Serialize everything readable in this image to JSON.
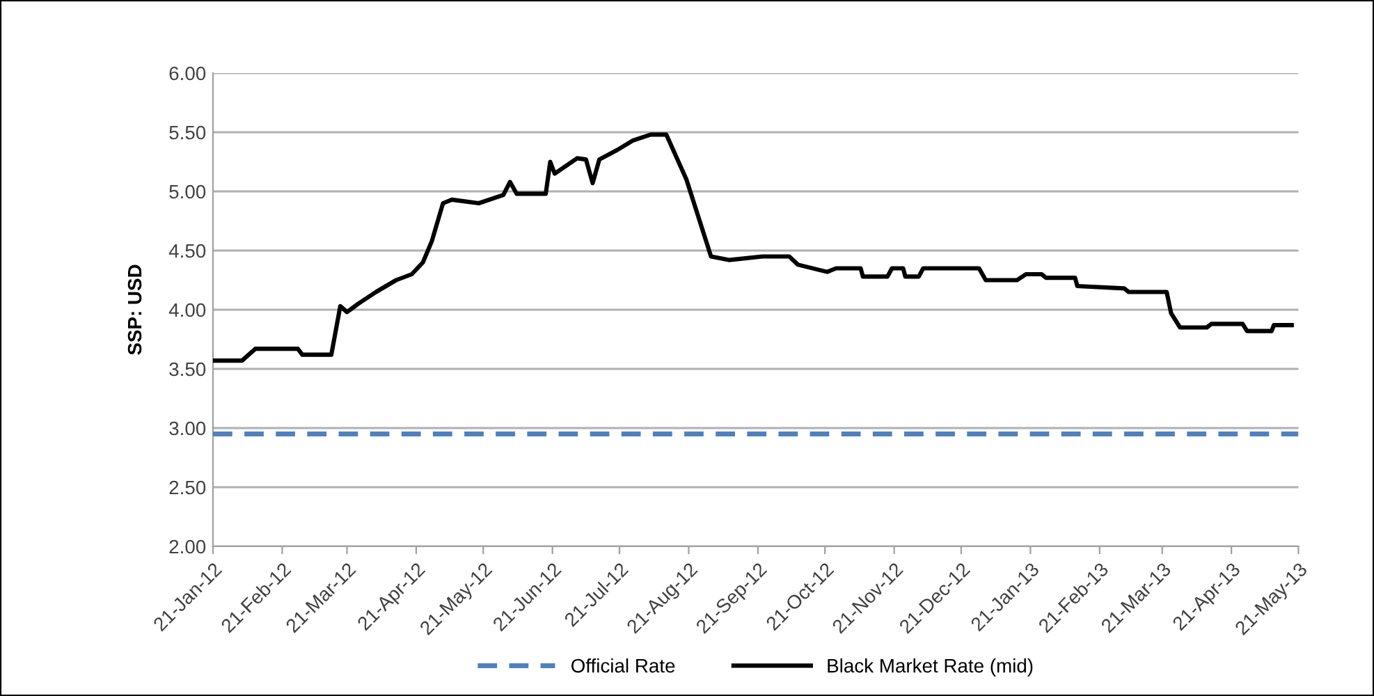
{
  "chart_data": {
    "type": "line",
    "ylabel": "SSP: USD",
    "xlim": [
      "2012-01-21",
      "2013-05-21"
    ],
    "ylim": [
      2.0,
      6.0
    ],
    "yticks": [
      {
        "value": 2,
        "label": "2.00"
      },
      {
        "value": 2.5,
        "label": "2.50"
      },
      {
        "value": 3,
        "label": "3.00"
      },
      {
        "value": 3.5,
        "label": "3.50"
      },
      {
        "value": 4,
        "label": "4.00"
      },
      {
        "value": 4.5,
        "label": "4.50"
      },
      {
        "value": 5,
        "label": "5.00"
      },
      {
        "value": 5.5,
        "label": "5.50"
      },
      {
        "value": 6,
        "label": "6.00"
      }
    ],
    "xticks": [
      {
        "value": "2012-01-21",
        "label": "21-Jan-12"
      },
      {
        "value": "2012-02-21",
        "label": "21-Feb-12"
      },
      {
        "value": "2012-03-21",
        "label": "21-Mar-12"
      },
      {
        "value": "2012-04-21",
        "label": "21-Apr-12"
      },
      {
        "value": "2012-05-21",
        "label": "21-May-12"
      },
      {
        "value": "2012-06-21",
        "label": "21-Jun-12"
      },
      {
        "value": "2012-07-21",
        "label": "21-Jul-12"
      },
      {
        "value": "2012-08-21",
        "label": "21-Aug-12"
      },
      {
        "value": "2012-09-21",
        "label": "21-Sep-12"
      },
      {
        "value": "2012-10-21",
        "label": "21-Oct-12"
      },
      {
        "value": "2012-11-21",
        "label": "21-Nov-12"
      },
      {
        "value": "2012-12-21",
        "label": "21-Dec-12"
      },
      {
        "value": "2013-01-21",
        "label": "21-Jan-13"
      },
      {
        "value": "2013-02-21",
        "label": "21-Feb-13"
      },
      {
        "value": "2013-03-21",
        "label": "21-Mar-13"
      },
      {
        "value": "2013-04-21",
        "label": "21-Apr-13"
      },
      {
        "value": "2013-05-21",
        "label": "21-May-13"
      }
    ],
    "grid": "y",
    "legend": "bottom",
    "marker": "none",
    "series": [
      {
        "name": "Official Rate",
        "color": "#4f81bd",
        "line_style": "dashed",
        "x": [
          "2012-01-21",
          "2013-05-21"
        ],
        "values": [
          2.95,
          2.95
        ]
      },
      {
        "name": "Black Market Rate (mid)",
        "color": "#000000",
        "line_style": "solid",
        "x": [
          "2012-01-21",
          "2012-02-03",
          "2012-02-09",
          "2012-02-28",
          "2012-03-01",
          "2012-03-14",
          "2012-03-18",
          "2012-03-21",
          "2012-03-26",
          "2012-04-03",
          "2012-04-12",
          "2012-04-19",
          "2012-04-24",
          "2012-04-28",
          "2012-05-03",
          "2012-05-07",
          "2012-05-19",
          "2012-05-30",
          "2012-06-02",
          "2012-06-05",
          "2012-06-18",
          "2012-06-20",
          "2012-06-22",
          "2012-07-02",
          "2012-07-06",
          "2012-07-09",
          "2012-07-12",
          "2012-07-20",
          "2012-07-27",
          "2012-08-04",
          "2012-08-11",
          "2012-08-20",
          "2012-08-31",
          "2012-09-08",
          "2012-09-23",
          "2012-10-05",
          "2012-10-09",
          "2012-10-22",
          "2012-10-26",
          "2012-11-06",
          "2012-11-07",
          "2012-11-18",
          "2012-11-20",
          "2012-11-25",
          "2012-11-26",
          "2012-12-02",
          "2012-12-04",
          "2012-12-29",
          "2013-01-01",
          "2013-01-15",
          "2013-01-19",
          "2013-01-26",
          "2013-01-28",
          "2013-02-10",
          "2013-02-11",
          "2013-03-04",
          "2013-03-06",
          "2013-03-23",
          "2013-03-25",
          "2013-03-29",
          "2013-04-10",
          "2013-04-12",
          "2013-04-26",
          "2013-04-28",
          "2013-05-09",
          "2013-05-10",
          "2013-05-18"
        ],
        "values": [
          3.57,
          3.57,
          3.67,
          3.67,
          3.62,
          3.62,
          4.03,
          3.98,
          4.05,
          4.15,
          4.25,
          4.3,
          4.4,
          4.58,
          4.9,
          4.93,
          4.9,
          4.97,
          5.08,
          4.98,
          4.98,
          5.25,
          5.15,
          5.28,
          5.27,
          5.07,
          5.27,
          5.35,
          5.43,
          5.48,
          5.48,
          5.1,
          4.45,
          4.42,
          4.45,
          4.45,
          4.38,
          4.32,
          4.35,
          4.35,
          4.28,
          4.28,
          4.35,
          4.35,
          4.28,
          4.28,
          4.35,
          4.35,
          4.25,
          4.25,
          4.3,
          4.3,
          4.27,
          4.27,
          4.2,
          4.18,
          4.15,
          4.15,
          3.97,
          3.85,
          3.85,
          3.88,
          3.88,
          3.82,
          3.82,
          3.87,
          3.87
        ]
      }
    ]
  }
}
